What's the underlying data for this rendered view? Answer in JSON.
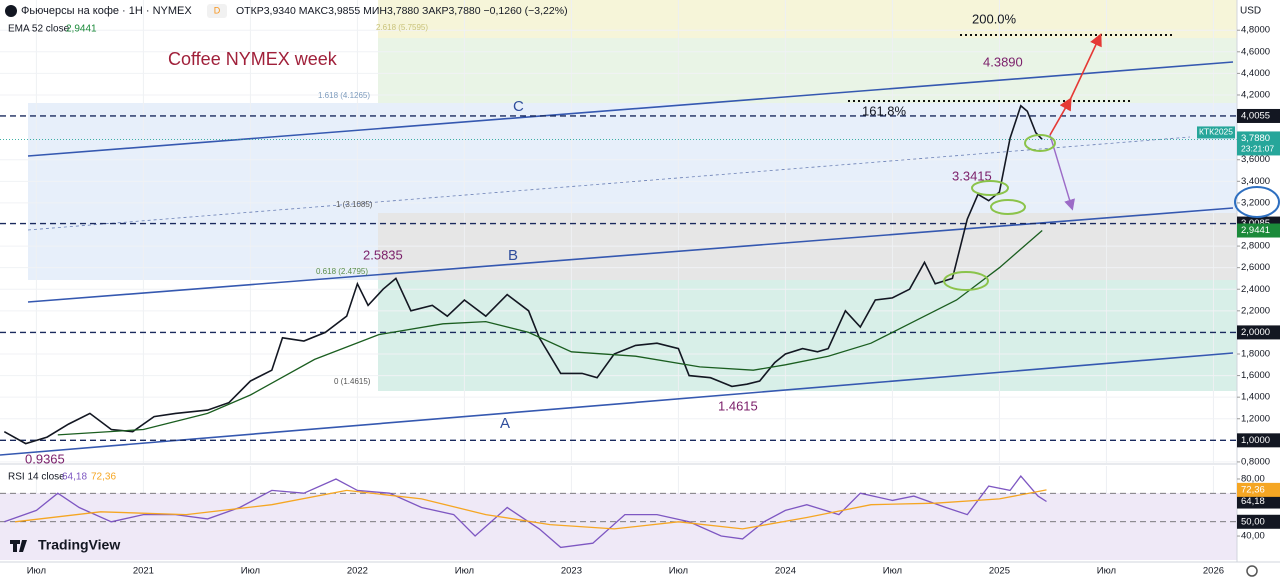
{
  "header": {
    "interval_badge": "D",
    "ohlc": "ОТКР3,9340 МАКС3,9855 МИН3,7880 ЗАКР3,7880 −0,1260 (−3,22%)",
    "currency": "USD",
    "branding": "TradingView"
  },
  "chart_data": [
    {
      "type": "line",
      "xlim": [
        2020.33,
        2026.11
      ],
      "ylim": [
        0.79,
        5.08
      ],
      "yticks": [
        {
          "value": 4.8,
          "label": "4,8000"
        },
        {
          "value": 4.6,
          "label": "4,6000"
        },
        {
          "value": 4.4,
          "label": "4,4000"
        },
        {
          "value": 4.2,
          "label": "4,2000"
        },
        {
          "value": 3.6,
          "label": "3,6000"
        },
        {
          "value": 3.4,
          "label": "3,4000"
        },
        {
          "value": 3.2,
          "label": "3,2000"
        },
        {
          "value": 2.8,
          "label": "2,8000"
        },
        {
          "value": 2.6,
          "label": "2,6000"
        },
        {
          "value": 2.4,
          "label": "2,4000"
        },
        {
          "value": 2.2,
          "label": "2,2000"
        },
        {
          "value": 1.8,
          "label": "1,8000"
        },
        {
          "value": 1.6,
          "label": "1,6000"
        },
        {
          "value": 1.4,
          "label": "1,4000"
        },
        {
          "value": 1.2,
          "label": "1,2000"
        },
        {
          "value": 0.8,
          "label": "0,8000"
        }
      ],
      "series": [
        {
          "name": "Фьючерсы на кофе · 1Н · NYMEX",
          "color": "#131722",
          "x": [
            2020.35,
            2020.45,
            2020.55,
            2020.65,
            2020.75,
            2020.85,
            2020.95,
            2021.05,
            2021.15,
            2021.3,
            2021.4,
            2021.5,
            2021.6,
            2021.65,
            2021.75,
            2021.85,
            2021.95,
            2022.0,
            2022.05,
            2022.12,
            2022.18,
            2022.25,
            2022.35,
            2022.42,
            2022.5,
            2022.6,
            2022.7,
            2022.8,
            2022.85,
            2022.95,
            2023.05,
            2023.12,
            2023.2,
            2023.3,
            2023.4,
            2023.5,
            2023.55,
            2023.65,
            2023.75,
            2023.82,
            2023.88,
            2023.95,
            2024.0,
            2024.08,
            2024.15,
            2024.2,
            2024.28,
            2024.35,
            2024.42,
            2024.5,
            2024.58,
            2024.65,
            2024.7,
            2024.78,
            2024.85,
            2024.9,
            2024.95,
            2025.0,
            2025.05,
            2025.1,
            2025.13,
            2025.17,
            2025.2
          ],
          "values": [
            1.08,
            0.97,
            1.03,
            1.15,
            1.25,
            1.1,
            1.08,
            1.22,
            1.25,
            1.28,
            1.35,
            1.55,
            1.65,
            1.95,
            1.92,
            2.0,
            2.15,
            2.45,
            2.25,
            2.4,
            2.5,
            2.2,
            2.25,
            2.15,
            2.3,
            2.15,
            2.35,
            2.2,
            1.95,
            1.62,
            1.62,
            1.58,
            1.8,
            1.88,
            1.9,
            1.85,
            1.6,
            1.58,
            1.5,
            1.52,
            1.55,
            1.72,
            1.8,
            1.85,
            1.82,
            1.85,
            2.2,
            2.05,
            2.3,
            2.32,
            2.4,
            2.65,
            2.45,
            2.5,
            3.05,
            3.28,
            3.22,
            3.3,
            3.8,
            4.1,
            4.05,
            3.85,
            3.788
          ]
        },
        {
          "name": "EMA 52 close",
          "color": "#1b5e20",
          "value_label": "2,9441",
          "x": [
            2020.6,
            2021.0,
            2021.3,
            2021.5,
            2021.8,
            2022.1,
            2022.4,
            2022.6,
            2022.8,
            2023.0,
            2023.3,
            2023.6,
            2023.85,
            2024.0,
            2024.2,
            2024.4,
            2024.6,
            2024.8,
            2025.0,
            2025.2
          ],
          "values": [
            1.05,
            1.1,
            1.25,
            1.42,
            1.75,
            1.98,
            2.08,
            2.1,
            2.0,
            1.82,
            1.78,
            1.68,
            1.65,
            1.7,
            1.78,
            1.9,
            2.1,
            2.3,
            2.6,
            2.9441
          ]
        }
      ],
      "levels": [
        {
          "value": 4.0055,
          "label": "4,0055"
        },
        {
          "value": 3.0085,
          "label": "3,0085"
        },
        {
          "value": 2.0,
          "label": "2,0000"
        },
        {
          "value": 1.0,
          "label": "1,0000"
        }
      ],
      "last_price": {
        "symbol": "КТК2025",
        "value": 3.788,
        "label": "3,7880",
        "countdown": "23:21:07"
      },
      "annotations": [
        "Coffee NYMEX week",
        "200.0%",
        "4.3890",
        "161.8%",
        "3.3415",
        "2.5835",
        "1.4615",
        "0.9365",
        "C",
        "B",
        "A",
        "1.618 (4.1265)",
        "1 (3.1085)",
        "0.618 (2.4795)",
        "0 (1.4615)",
        "2.618 (5.7595)"
      ]
    },
    {
      "type": "line",
      "title": "RSI 14 close",
      "xlim": [
        2020.33,
        2026.11
      ],
      "ylim": [
        23.2,
        89.1
      ],
      "xticks": [
        {
          "value": 2020.5,
          "label": "Июл"
        },
        2021,
        {
          "value": 2021.5,
          "label": "Июл"
        },
        2022,
        {
          "value": 2022.5,
          "label": "Июл"
        },
        2023,
        {
          "value": 2023.5,
          "label": "Июл"
        },
        2024,
        {
          "value": 2024.5,
          "label": "Июл"
        },
        2025,
        {
          "value": 2025.5,
          "label": "Июл"
        },
        2026
      ],
      "yticks": [
        {
          "value": 80,
          "label": "80,00"
        },
        {
          "value": 50,
          "label": "50,00"
        },
        {
          "value": 40,
          "label": "40,00"
        }
      ],
      "bands": [
        70,
        50
      ],
      "series": [
        {
          "color": "#7e57c2",
          "value_label": "64,18",
          "x": [
            2020.35,
            2020.5,
            2020.6,
            2020.7,
            2020.85,
            2021.0,
            2021.15,
            2021.3,
            2021.45,
            2021.6,
            2021.75,
            2021.9,
            2022.0,
            2022.15,
            2022.3,
            2022.45,
            2022.55,
            2022.7,
            2022.85,
            2022.95,
            2023.1,
            2023.25,
            2023.4,
            2023.55,
            2023.7,
            2023.8,
            2023.9,
            2024.0,
            2024.1,
            2024.25,
            2024.35,
            2024.5,
            2024.6,
            2024.75,
            2024.85,
            2024.95,
            2025.05,
            2025.1,
            2025.18,
            2025.22
          ],
          "values": [
            50,
            58,
            70,
            60,
            50,
            55,
            55,
            52,
            60,
            72,
            70,
            80,
            72,
            70,
            60,
            55,
            40,
            60,
            45,
            32,
            35,
            55,
            55,
            50,
            40,
            38,
            50,
            58,
            62,
            55,
            70,
            65,
            68,
            60,
            55,
            75,
            72,
            82,
            68,
            64.18
          ]
        },
        {
          "color": "#f5a623",
          "value_label": "72,36",
          "x": [
            2020.4,
            2020.8,
            2021.2,
            2021.6,
            2021.95,
            2022.3,
            2022.6,
            2022.9,
            2023.2,
            2023.5,
            2023.8,
            2024.1,
            2024.4,
            2024.7,
            2025.0,
            2025.22
          ],
          "values": [
            50,
            57,
            55,
            62,
            72,
            66,
            55,
            48,
            45,
            50,
            45,
            53,
            62,
            63,
            66,
            72.36
          ]
        }
      ]
    }
  ]
}
